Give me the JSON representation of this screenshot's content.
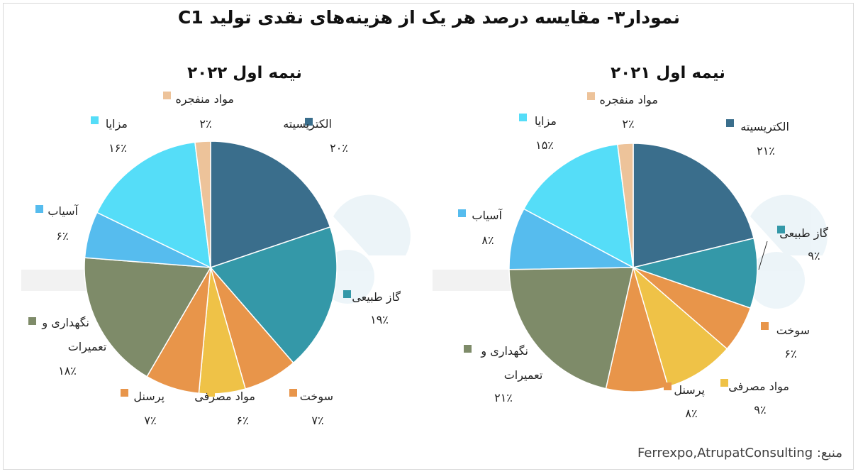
{
  "title": "نمودار۳- مقایسه درصد هر یک از هزینه‌های نقدی تولید C1",
  "source": "منبع: Ferrexpo,AtrupatConsulting",
  "chart_data": [
    {
      "type": "pie",
      "title": "نیمه اول ۲۰۲۲",
      "slices": [
        {
          "label": "الکتریسیته",
          "value": 20,
          "value_label": "۲۰٪",
          "color": "#3A6E8C"
        },
        {
          "label": "گاز طبیعی",
          "value": 19,
          "value_label": "۱۹٪",
          "color": "#3498A8"
        },
        {
          "label": "سوخت",
          "value": 7,
          "value_label": "۷٪",
          "color": "#E8954A"
        },
        {
          "label": "مواد مصرفی",
          "value": 6,
          "value_label": "۶٪",
          "color": "#EFC247"
        },
        {
          "label": "پرسنل",
          "value": 7,
          "value_label": "۷٪",
          "color": "#E8954A"
        },
        {
          "label": "نگهداری و تعمیرات",
          "value": 18,
          "value_label": "۱۸٪",
          "color": "#7E8B69"
        },
        {
          "label": "آسیاب",
          "value": 6,
          "value_label": "۶٪",
          "color": "#56BCEE"
        },
        {
          "label": "مزایا",
          "value": 16,
          "value_label": "۱۶٪",
          "color": "#55DDF8"
        },
        {
          "label": "مواد منفجره",
          "value": 2,
          "value_label": "۲٪",
          "color": "#EDC39A"
        }
      ]
    },
    {
      "type": "pie",
      "title": "نیمه اول ۲۰۲۱",
      "slices": [
        {
          "label": "الکتریسیته",
          "value": 21,
          "value_label": "۲۱٪",
          "color": "#3A6E8C"
        },
        {
          "label": "گاز طبیعی",
          "value": 9,
          "value_label": "۹٪",
          "color": "#3498A8"
        },
        {
          "label": "سوخت",
          "value": 6,
          "value_label": "۶٪",
          "color": "#E8954A"
        },
        {
          "label": "مواد مصرفی",
          "value": 9,
          "value_label": "۹٪",
          "color": "#EFC247"
        },
        {
          "label": "پرسنل",
          "value": 8,
          "value_label": "۸٪",
          "color": "#E8954A"
        },
        {
          "label": "نگهداری و تعمیرات",
          "value": 21,
          "value_label": "۲۱٪",
          "color": "#7E8B69"
        },
        {
          "label": "آسیاب",
          "value": 8,
          "value_label": "۸٪",
          "color": "#56BCEE"
        },
        {
          "label": "مزایا",
          "value": 15,
          "value_label": "۱۵٪",
          "color": "#55DDF8"
        },
        {
          "label": "مواد منفجره",
          "value": 2,
          "value_label": "۲٪",
          "color": "#EDC39A"
        }
      ]
    }
  ]
}
